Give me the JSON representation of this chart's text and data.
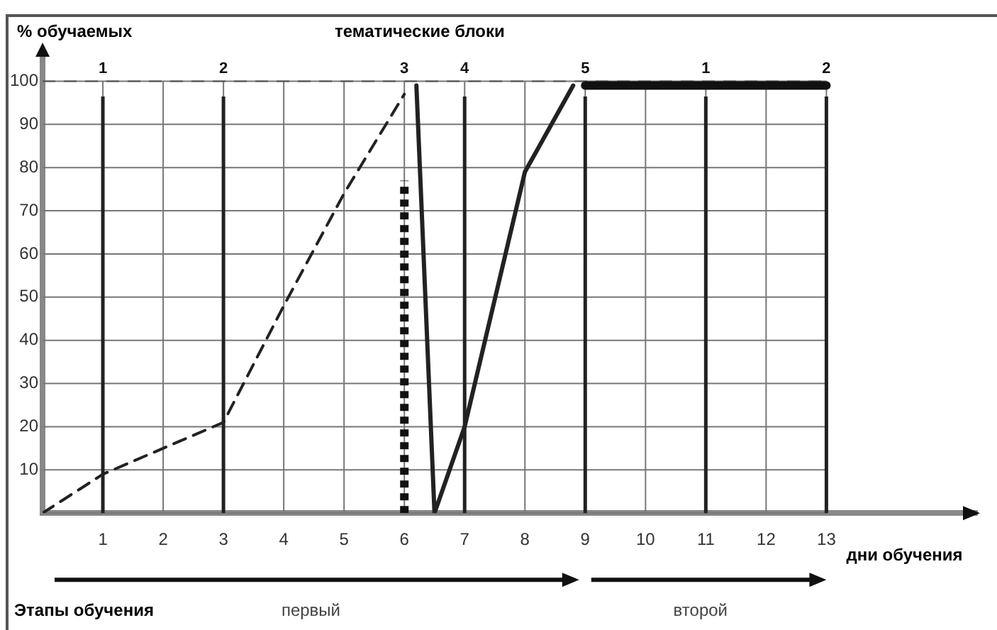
{
  "chart_data": {
    "type": "line",
    "title": "тематические блоки",
    "ylabel": "% обучаемых",
    "xlabel": "дни обучения",
    "xlim": [
      0,
      15.5
    ],
    "xticks": [
      1,
      2,
      3,
      4,
      5,
      6,
      7,
      8,
      9,
      10,
      11,
      12,
      13
    ],
    "ylim": [
      0,
      105
    ],
    "yticks": [
      {
        "value": 0,
        "label": null
      },
      10,
      20,
      30,
      40,
      50,
      60,
      70,
      80,
      90,
      100
    ],
    "grid": true,
    "series": [
      {
        "color": "#222222",
        "line_style": "dashed",
        "x": [
          0,
          1,
          2,
          3,
          4,
          5,
          6
        ],
        "values": [
          0,
          9,
          15,
          21,
          48,
          74,
          97
        ]
      },
      {
        "color": "#222222",
        "line_style": "solid",
        "x": [
          6.2,
          6.5,
          7,
          8,
          8.8
        ],
        "values": [
          99,
          0,
          20,
          79,
          99
        ]
      },
      {
        "color": "#111111",
        "line_style": "solid",
        "x": [
          9,
          11,
          13
        ],
        "values": [
          99,
          99,
          99
        ]
      },
      {
        "color": "#111111",
        "line_style": "dotted",
        "x": [
          6,
          6
        ],
        "values": [
          0,
          77
        ]
      }
    ],
    "ref_lines": [
      {
        "axis": "y",
        "value": 100,
        "line_style": "dashed",
        "color": "#555555"
      },
      {
        "axis": "x",
        "value": 1,
        "color": "#222222"
      },
      {
        "axis": "x",
        "value": 3,
        "color": "#222222"
      },
      {
        "axis": "x",
        "value": 7,
        "color": "#222222"
      },
      {
        "axis": "x",
        "value": 9,
        "color": "#222222"
      },
      {
        "axis": "x",
        "value": 11,
        "color": "#222222"
      },
      {
        "axis": "x",
        "value": 13,
        "color": "#222222"
      }
    ],
    "annotations": [
      {
        "text": "1",
        "x": 1,
        "y": 100
      },
      {
        "text": "2",
        "x": 3,
        "y": 100
      },
      {
        "text": "3",
        "x": 6,
        "y": 100
      },
      {
        "text": "4",
        "x": 7,
        "y": 100
      },
      {
        "text": "5",
        "x": 9,
        "y": 100
      },
      {
        "text": "1",
        "x": 11,
        "y": 100
      },
      {
        "text": "2",
        "x": 13,
        "y": 100
      },
      "Этапы обучения",
      "первый",
      "второй"
    ]
  }
}
